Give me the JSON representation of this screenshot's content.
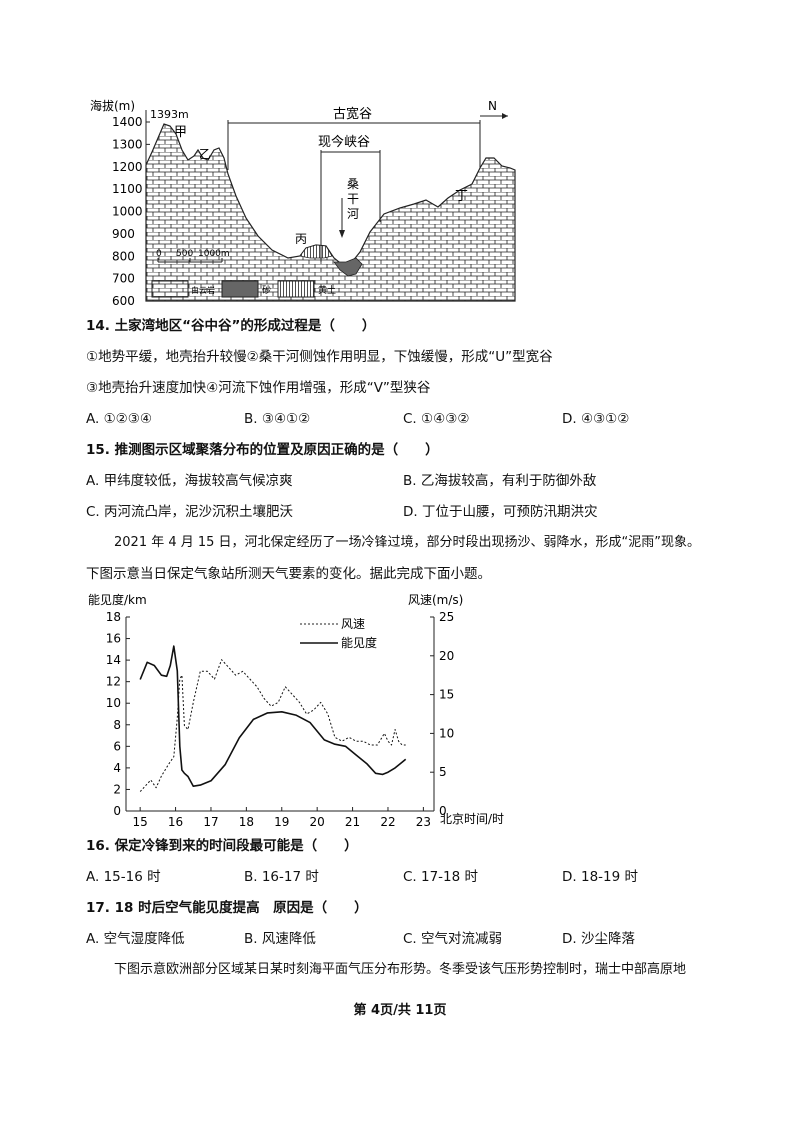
{
  "profile": {
    "y_axis_label": "海拔(m)",
    "peak_label": "1393m",
    "y_ticks": [
      "1400",
      "1300",
      "1200",
      "1100",
      "1000",
      "900",
      "800",
      "700",
      "600"
    ],
    "ancient_valley": "古宽谷",
    "modern_gorge": "现今峡谷",
    "north": "N",
    "river": [
      "桑",
      "干",
      "河"
    ],
    "points": {
      "jia": "甲",
      "yi": "乙",
      "bing": "丙",
      "ding": "丁"
    },
    "scale": {
      "zero": "0",
      "mid": "500",
      "end": "1000m"
    },
    "legend": [
      {
        "label": "白云岩"
      },
      {
        "label": "砂"
      },
      {
        "label": "黄土"
      }
    ]
  },
  "q14": {
    "stem": "14. 土家湾地区“谷中谷”的形成过程是（　　）",
    "line1": "①地势平缓，地壳抬升较慢②桑干河侧蚀作用明显，下蚀缓慢，形成“U”型宽谷",
    "line2": "③地壳抬升速度加快④河流下蚀作用增强，形成“V”型狭谷",
    "options": [
      "A. ①②③④",
      "B. ③④①②",
      "C. ①④③②",
      "D. ④③①②"
    ]
  },
  "q15": {
    "stem": "15. 推测图示区域聚落分布的位置及原因正确的是（　　）",
    "options": [
      "A. 甲纬度较低，海拔较高气候凉爽",
      "B. 乙海拔较高，有利于防御外敌",
      "C. 丙河流凸岸，泥沙沉积土壤肥沃",
      "D. 丁位于山腰，可预防汛期洪灾"
    ]
  },
  "intro": {
    "line1": "2021 年 4 月 15 日，河北保定经历了一场冷锋过境，部分时段出现扬沙、弱降水，形成“泥雨”现象。",
    "line2": "下图示意当日保定气象站所测天气要素的变化。据此完成下面小题。"
  },
  "chart_data": {
    "type": "line",
    "xlabel": "北京时间/时",
    "ylabel_left": "能见度/km",
    "ylabel_right": "风速(m/s)",
    "x_ticks": [
      "15",
      "16",
      "17",
      "18",
      "19",
      "20",
      "21",
      "22",
      "23"
    ],
    "y_left_ticks": [
      "18",
      "16",
      "14",
      "12",
      "10",
      "8",
      "6",
      "4",
      "2",
      "0"
    ],
    "y_right_ticks": [
      "25",
      "20",
      "15",
      "10",
      "5",
      "0"
    ],
    "xlim": [
      14.6,
      23.3
    ],
    "ylim_left": [
      0,
      18
    ],
    "ylim_right": [
      0,
      25
    ],
    "series": [
      {
        "name": "风速",
        "axis": "right",
        "style": "dashed",
        "x": [
          15,
          15.3,
          15.45,
          15.6,
          15.8,
          15.95,
          16.05,
          16.12,
          16.18,
          16.25,
          16.35,
          16.5,
          16.7,
          16.9,
          17.1,
          17.3,
          17.5,
          17.7,
          17.9,
          18.1,
          18.3,
          18.5,
          18.7,
          18.9,
          19.1,
          19.3,
          19.5,
          19.7,
          19.9,
          20.1,
          20.3,
          20.5,
          20.7,
          20.9,
          21.1,
          21.3,
          21.5,
          21.7,
          21.9,
          22.0,
          22.1,
          22.2,
          22.3,
          22.4,
          22.5
        ],
        "y": [
          2.5,
          4,
          3,
          4.5,
          6,
          7,
          12,
          17,
          17.5,
          11,
          10.5,
          14,
          18,
          18,
          17,
          19.5,
          18.5,
          17.5,
          18,
          17,
          16,
          14.5,
          13.5,
          14,
          16,
          15,
          14,
          12.5,
          13,
          14,
          12.5,
          9.5,
          9,
          9.5,
          9,
          9,
          8.5,
          8.5,
          10,
          9,
          8.5,
          10.5,
          9,
          8.5,
          8.5
        ]
      },
      {
        "name": "能见度",
        "axis": "left",
        "style": "solid",
        "x": [
          15,
          15.2,
          15.4,
          15.6,
          15.75,
          15.85,
          15.95,
          16.05,
          16.12,
          16.18,
          16.25,
          16.35,
          16.5,
          16.7,
          17,
          17.4,
          17.8,
          18.2,
          18.6,
          19,
          19.4,
          19.8,
          20.2,
          20.5,
          20.8,
          21.1,
          21.4,
          21.65,
          21.85,
          22.0,
          22.2,
          22.5
        ],
        "y": [
          12.2,
          13.8,
          13.5,
          12.6,
          12.5,
          13.5,
          15.3,
          13,
          6,
          3.8,
          3.5,
          3.2,
          2.3,
          2.4,
          2.8,
          4.3,
          6.8,
          8.5,
          9.1,
          9.2,
          8.9,
          8.2,
          6.6,
          6.2,
          6.0,
          5.2,
          4.4,
          3.5,
          3.4,
          3.6,
          4.0,
          4.8
        ]
      }
    ]
  },
  "q16": {
    "stem": "16. 保定冷锋到来的时间段最可能是（　　）",
    "options": [
      "A. 15-16 时",
      "B. 16-17 时",
      "C. 17-18 时",
      "D. 18-19 时"
    ]
  },
  "q17": {
    "stem": "17. 18 时后空气能见度提高　原因是（　　）",
    "options": [
      "A. 空气湿度降低",
      "B. 风速降低",
      "C. 空气对流减弱",
      "D. 沙尘降落"
    ]
  },
  "bottom_text": "下图示意欧洲部分区域某日某时刻海平面气压分布形势。冬季受该气压形势控制时，瑞士中部高原地",
  "footer": "第 4页/共 11页"
}
